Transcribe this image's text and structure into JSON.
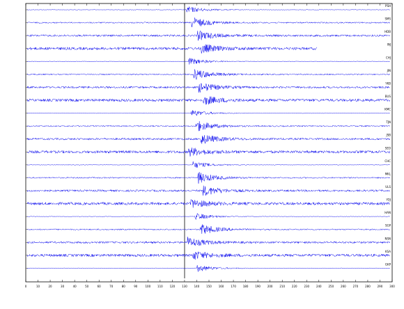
{
  "chart_data": {
    "type": "seismogram",
    "stations": [
      "PSH",
      "SMS",
      "HDB",
      "INJ",
      "CHJ",
      "JIN",
      "YKB",
      "BUS",
      "KMC",
      "TJN",
      "JSB",
      "SEO",
      "CHC",
      "MKL",
      "ULS",
      "YOJ",
      "HAN",
      "SGP",
      "NSN",
      "KSA",
      "GKP"
    ],
    "color": "#0000ee",
    "xlim": [
      0,
      300
    ],
    "xticks": [
      0,
      10,
      20,
      30,
      40,
      50,
      60,
      70,
      80,
      90,
      100,
      110,
      120,
      130,
      140,
      150,
      160,
      170,
      180,
      190,
      200,
      210,
      220,
      230,
      240,
      250,
      260,
      270,
      280,
      290,
      300
    ]
  }
}
